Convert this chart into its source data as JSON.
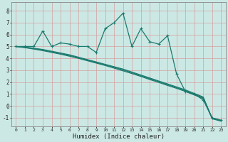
{
  "xlabel": "Humidex (Indice chaleur)",
  "background_color": "#cce8e4",
  "grid_color": "#d4a0a0",
  "line_color": "#1a7a6e",
  "xlim": [
    -0.5,
    23.5
  ],
  "ylim": [
    -1.7,
    8.7
  ],
  "xticks": [
    0,
    1,
    2,
    3,
    4,
    5,
    6,
    7,
    8,
    9,
    10,
    11,
    12,
    13,
    14,
    15,
    16,
    17,
    18,
    19,
    20,
    21,
    22,
    23
  ],
  "yticks": [
    -1,
    0,
    1,
    2,
    3,
    4,
    5,
    6,
    7,
    8
  ],
  "series1_x": [
    0,
    1,
    2,
    3,
    4,
    5,
    6,
    7,
    8,
    9,
    10,
    11,
    12,
    13,
    14,
    15,
    16,
    17,
    18,
    19,
    20,
    21,
    22,
    23
  ],
  "series1_y": [
    5.0,
    5.0,
    5.0,
    6.3,
    5.0,
    5.3,
    5.2,
    5.0,
    5.0,
    4.5,
    6.5,
    7.0,
    7.8,
    5.0,
    6.5,
    5.4,
    5.2,
    5.9,
    2.7,
    1.2,
    1.0,
    0.5,
    -1.0,
    -1.2
  ],
  "series2_x": [
    0,
    1,
    2,
    3,
    4,
    5,
    6,
    7,
    8,
    9,
    10,
    11,
    12,
    13,
    14,
    15,
    16,
    17,
    18,
    19,
    20,
    21,
    22,
    23
  ],
  "series2_y": [
    5.0,
    4.95,
    4.85,
    4.75,
    4.6,
    4.45,
    4.3,
    4.1,
    3.9,
    3.7,
    3.5,
    3.3,
    3.1,
    2.85,
    2.6,
    2.35,
    2.1,
    1.85,
    1.6,
    1.35,
    1.05,
    0.75,
    -1.05,
    -1.25
  ],
  "series3_x": [
    0,
    1,
    2,
    3,
    4,
    5,
    6,
    7,
    8,
    9,
    10,
    11,
    12,
    13,
    14,
    15,
    16,
    17,
    18,
    19,
    20,
    21,
    22,
    23
  ],
  "series3_y": [
    5.0,
    4.9,
    4.78,
    4.65,
    4.5,
    4.35,
    4.18,
    4.0,
    3.8,
    3.6,
    3.4,
    3.18,
    2.95,
    2.72,
    2.48,
    2.22,
    1.98,
    1.72,
    1.48,
    1.22,
    0.92,
    0.62,
    -1.08,
    -1.28
  ],
  "series4_x": [
    0,
    1,
    2,
    3,
    4,
    5,
    6,
    7,
    8,
    9,
    10,
    11,
    12,
    13,
    14,
    15,
    16,
    17,
    18,
    19,
    20,
    21,
    22,
    23
  ],
  "series4_y": [
    5.0,
    4.92,
    4.82,
    4.7,
    4.55,
    4.4,
    4.24,
    4.05,
    3.85,
    3.65,
    3.45,
    3.24,
    3.03,
    2.79,
    2.54,
    2.29,
    2.04,
    1.79,
    1.54,
    1.28,
    0.99,
    0.69,
    -1.02,
    -1.22
  ]
}
